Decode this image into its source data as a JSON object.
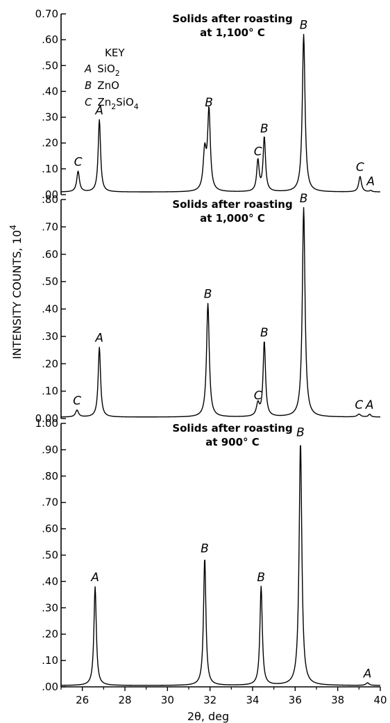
{
  "chart_data": {
    "type": "line",
    "xlabel": "2θ, deg",
    "ylabel": "INTENSITY COUNTS, 10",
    "ylabel_superscript": "4",
    "xlim": [
      25,
      40
    ],
    "x_ticks": [
      "26",
      "28",
      "30",
      "32",
      "34",
      "36",
      "38",
      "40"
    ],
    "x_tick_values": [
      26,
      28,
      30,
      32,
      34,
      36,
      38,
      40
    ],
    "key": {
      "title": "KEY",
      "entries": [
        {
          "letter": "A",
          "formula": "SiO",
          "sub": "2"
        },
        {
          "letter": "B",
          "formula": "ZnO",
          "sub": ""
        },
        {
          "letter": "C",
          "formula": "Zn",
          "sub": "2",
          "formula2": "SiO",
          "sub2": "4"
        }
      ]
    },
    "panels": [
      {
        "title_line1": "Solids after roasting",
        "title_line2": "at 1,100° C",
        "ylim": [
          0,
          0.7
        ],
        "y_ticks": [
          "0.70",
          ".60",
          ".50",
          ".40",
          ".30",
          ".20",
          ".10",
          ".00"
        ],
        "y_tick_values": [
          0.7,
          0.6,
          0.5,
          0.4,
          0.3,
          0.2,
          0.1,
          0.0
        ],
        "baseline": 0.01,
        "peaks": [
          {
            "label": "C",
            "x": 25.8,
            "y": 0.09,
            "w": 0.09
          },
          {
            "label": "A",
            "x": 26.8,
            "y": 0.29,
            "w": 0.08
          },
          {
            "label": "",
            "x": 28.7,
            "y": 0.01,
            "w": 0.15
          },
          {
            "label": "",
            "x": 31.75,
            "y": 0.16,
            "w": 0.1
          },
          {
            "label": "B",
            "x": 31.95,
            "y": 0.32,
            "w": 0.09
          },
          {
            "label": "C",
            "x": 34.25,
            "y": 0.13,
            "w": 0.08
          },
          {
            "label": "B",
            "x": 34.55,
            "y": 0.22,
            "w": 0.08
          },
          {
            "label": "B",
            "x": 36.4,
            "y": 0.62,
            "w": 0.09
          },
          {
            "label": "C",
            "x": 39.05,
            "y": 0.07,
            "w": 0.09
          },
          {
            "label": "A",
            "x": 39.55,
            "y": 0.015,
            "w": 0.08
          }
        ]
      },
      {
        "title_line1": "Solids after roasting",
        "title_line2": "at 1,000° C",
        "ylim": [
          0,
          0.8
        ],
        "y_ticks": [
          ".80",
          ".70",
          ".60",
          ".50",
          ".40",
          ".30",
          ".20",
          ".10",
          "0.00"
        ],
        "y_tick_values": [
          0.8,
          0.7,
          0.6,
          0.5,
          0.4,
          0.3,
          0.2,
          0.1,
          0.0
        ],
        "baseline": 0.005,
        "peaks": [
          {
            "label": "C",
            "x": 25.75,
            "y": 0.03,
            "w": 0.1
          },
          {
            "label": "A",
            "x": 26.8,
            "y": 0.26,
            "w": 0.08
          },
          {
            "label": "B",
            "x": 31.9,
            "y": 0.42,
            "w": 0.09
          },
          {
            "label": "C",
            "x": 34.25,
            "y": 0.05,
            "w": 0.1
          },
          {
            "label": "B",
            "x": 34.55,
            "y": 0.28,
            "w": 0.08
          },
          {
            "label": "B",
            "x": 36.4,
            "y": 0.77,
            "w": 0.09
          },
          {
            "label": "C",
            "x": 39.0,
            "y": 0.015,
            "w": 0.12
          },
          {
            "label": "A",
            "x": 39.5,
            "y": 0.015,
            "w": 0.08
          }
        ]
      },
      {
        "title_line1": "Solids after roasting",
        "title_line2": "at 900° C",
        "ylim": [
          0,
          1.0
        ],
        "y_ticks": [
          "1.00",
          ".90",
          ".80",
          ".70",
          ".60",
          ".50",
          ".40",
          ".30",
          ".20",
          ".10",
          ".00"
        ],
        "y_tick_values": [
          1.0,
          0.9,
          0.8,
          0.7,
          0.6,
          0.5,
          0.4,
          0.3,
          0.2,
          0.1,
          0.0
        ],
        "baseline": 0.005,
        "peaks": [
          {
            "label": "A",
            "x": 26.6,
            "y": 0.38,
            "w": 0.08
          },
          {
            "label": "B",
            "x": 31.75,
            "y": 0.49,
            "w": 0.08
          },
          {
            "label": "B",
            "x": 34.4,
            "y": 0.38,
            "w": 0.08
          },
          {
            "label": "B",
            "x": 36.25,
            "y": 0.93,
            "w": 0.09
          },
          {
            "label": "A",
            "x": 39.4,
            "y": 0.015,
            "w": 0.1
          }
        ]
      }
    ]
  }
}
